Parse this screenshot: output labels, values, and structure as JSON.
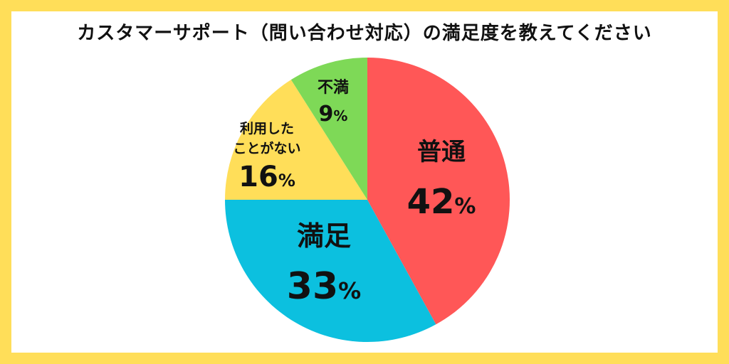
{
  "title": "カスタマーサポート（問い合わせ対応）の満足度を教えてください",
  "colors": {
    "border": "#FFDE59",
    "background": "#FFFFFF",
    "text": "#111111"
  },
  "chart_data": {
    "type": "pie",
    "start": "12 o'clock",
    "direction": "clockwise",
    "slices": [
      {
        "label": "普通",
        "value": 42,
        "display": "42",
        "unit": "%",
        "color": "#FF5757"
      },
      {
        "label": "満足",
        "value": 33,
        "display": "33",
        "unit": "%",
        "color": "#0CC0DF"
      },
      {
        "label": "利用したことがない",
        "label_lines": [
          "利用した",
          "ことがない"
        ],
        "value": 16,
        "display": "16",
        "unit": "%",
        "color": "#FFDE59"
      },
      {
        "label": "不満",
        "value": 9,
        "display": "9",
        "unit": "%",
        "color": "#7ED957"
      }
    ]
  }
}
